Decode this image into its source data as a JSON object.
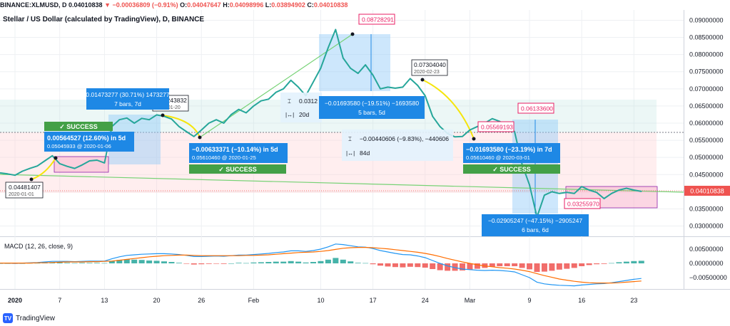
{
  "header": {
    "symbol": "BINANCE:XLMUSD, D",
    "last": "0.04010838",
    "change": "−0.00036809 (−0.91%)",
    "o_label": "O:",
    "o": "0.04047647",
    "h_label": "H:",
    "h": "0.04098996",
    "l_label": "L:",
    "l": "0.03894902",
    "c_label": "C:",
    "c": "0.04010838"
  },
  "chart_title": "Stellar / US Dollar (calculated by TradingView), D, BINANCE",
  "logo_text": "TradingView",
  "colors": {
    "price_line": "#26a69a",
    "success_green": "#43a047",
    "info_blue": "#2196f3",
    "callout_red": "#e91e63",
    "trend_green": "#76d275",
    "arc_yellow": "#f5e50c",
    "macd_line": "#2196f3",
    "signal_line": "#ff6d00",
    "hist_pos": "#26a69a",
    "hist_neg": "#ef5350",
    "current_price_bg": "#ef5350"
  },
  "price_axis_labels": [
    "0.09000000",
    "0.08500000",
    "0.08000000",
    "0.07500000",
    "0.07000000",
    "0.06500000",
    "0.06000000",
    "0.05500000",
    "0.05000000",
    "0.04500000",
    "0.04000000",
    "0.03500000",
    "0.03000000"
  ],
  "current_price_label": "0.04010838",
  "macd_axis_labels": [
    "0.00500000",
    "0.00000000",
    "−0.00500000"
  ],
  "x_axis_labels": [
    "2020",
    "7",
    "13",
    "20",
    "26",
    "Feb",
    "10",
    "17",
    "24",
    "Mar",
    "9",
    "16",
    "23"
  ],
  "macd_title": "MACD (12, 26, close, 9)",
  "annotations": {
    "low_jan01": {
      "value": "0.04481407",
      "date": "2020-01-01"
    },
    "high_jan20": {
      "value": "0.06243832",
      "date": "2020-01-20"
    },
    "top_callout": "0.08728291",
    "mid_callout": {
      "value": "0.07304040",
      "date": "2020-02-23"
    },
    "callout_a": "0.05569193",
    "callout_b": "0.06133600",
    "callout_c": "0.03255970",
    "success_1": {
      "badge": "✓ SUCCESS",
      "line1": "0.00564527 (12.60%) in 5d",
      "line2": "0.05045933 @ 2020-01-06"
    },
    "success_2": {
      "badge": "✓ SUCCESS",
      "line1": "−0.00633371 (−10.14%) in 5d",
      "line2": "0.05610460 @ 2020-01-25"
    },
    "success_3": {
      "badge": "✓ SUCCESS",
      "line1": "−0.01693580 (−23.19%) in 7d",
      "line2": "0.05610460 @ 2020-03-01"
    },
    "box_jan": {
      "line1": "0.01473277 (30.71%) 1473277",
      "line2": "7 bars, 7d"
    },
    "box_feb_a": {
      "line1": "0.0312",
      "line2": "20d"
    },
    "box_feb_b": {
      "line1": "−0.01693580 (−19.51%) −1693580",
      "line2": "5 bars, 5d"
    },
    "box_feb_c": {
      "line1": "−0.00440606 (−9.83%), −440606",
      "line2": "84d"
    },
    "box_mar": {
      "line1": "−0.02905247 (−47.15%) −2905247",
      "line2": "6 bars, 6d"
    }
  },
  "chart_data": {
    "type": "line",
    "title": "Stellar / US Dollar (calculated by TradingView), D, BINANCE",
    "x": [
      "2019-12-30",
      "2019-12-31",
      "2020-01-01",
      "2020-01-02",
      "2020-01-03",
      "2020-01-04",
      "2020-01-05",
      "2020-01-06",
      "2020-01-07",
      "2020-01-08",
      "2020-01-09",
      "2020-01-10",
      "2020-01-11",
      "2020-01-12",
      "2020-01-13",
      "2020-01-14",
      "2020-01-15",
      "2020-01-16",
      "2020-01-17",
      "2020-01-18",
      "2020-01-19",
      "2020-01-20",
      "2020-01-21",
      "2020-01-22",
      "2020-01-23",
      "2020-01-24",
      "2020-01-25",
      "2020-01-26",
      "2020-01-27",
      "2020-01-28",
      "2020-01-29",
      "2020-01-30",
      "2020-01-31",
      "2020-02-01",
      "2020-02-02",
      "2020-02-03",
      "2020-02-04",
      "2020-02-05",
      "2020-02-06",
      "2020-02-07",
      "2020-02-08",
      "2020-02-09",
      "2020-02-10",
      "2020-02-11",
      "2020-02-12",
      "2020-02-13",
      "2020-02-14",
      "2020-02-15",
      "2020-02-16",
      "2020-02-17",
      "2020-02-18",
      "2020-02-19",
      "2020-02-20",
      "2020-02-21",
      "2020-02-22",
      "2020-02-23",
      "2020-02-24",
      "2020-02-25",
      "2020-02-26",
      "2020-02-27",
      "2020-02-28",
      "2020-02-29",
      "2020-03-01",
      "2020-03-02",
      "2020-03-03",
      "2020-03-04",
      "2020-03-05",
      "2020-03-06",
      "2020-03-07",
      "2020-03-08",
      "2020-03-09",
      "2020-03-10",
      "2020-03-11",
      "2020-03-12",
      "2020-03-13",
      "2020-03-14",
      "2020-03-15",
      "2020-03-16",
      "2020-03-17",
      "2020-03-18",
      "2020-03-19",
      "2020-03-20",
      "2020-03-21",
      "2020-03-22",
      "2020-03-23",
      "2020-03-24",
      "2020-03-25"
    ],
    "series": [
      {
        "values": [
          0.0455,
          0.0452,
          0.0448,
          0.046,
          0.0468,
          0.0475,
          0.049,
          0.0505,
          0.0482,
          0.0474,
          0.0468,
          0.0478,
          0.049,
          0.0492,
          0.0484,
          0.059,
          0.061,
          0.0615,
          0.06,
          0.0614,
          0.061,
          0.0624,
          0.062,
          0.0612,
          0.059,
          0.0575,
          0.0561,
          0.058,
          0.06,
          0.061,
          0.06,
          0.0625,
          0.064,
          0.063,
          0.065,
          0.0665,
          0.067,
          0.069,
          0.07,
          0.0725,
          0.0705,
          0.068,
          0.072,
          0.076,
          0.082,
          0.0873,
          0.079,
          0.076,
          0.0745,
          0.077,
          0.074,
          0.07,
          0.0705,
          0.0702,
          0.0705,
          0.073,
          0.071,
          0.068,
          0.062,
          0.059,
          0.057,
          0.056,
          0.0561,
          0.058,
          0.059,
          0.06,
          0.0613,
          0.0605,
          0.059,
          0.0575,
          0.048,
          0.042,
          0.0326,
          0.039,
          0.04,
          0.0395,
          0.0398,
          0.0395,
          0.0415,
          0.0405,
          0.0398,
          0.038,
          0.0395,
          0.0405,
          0.041,
          0.0405,
          0.0401
        ]
      }
    ],
    "macd": {
      "title": "MACD (12, 26, close, 9)",
      "macd_values": [
        0.0001,
        0.0001,
        0.0,
        0.0001,
        0.0002,
        0.0003,
        0.0005,
        0.0007,
        0.0007,
        0.0007,
        0.0006,
        0.0007,
        0.0008,
        0.0008,
        0.0008,
        0.0016,
        0.0023,
        0.0028,
        0.003,
        0.0032,
        0.0033,
        0.0034,
        0.0034,
        0.0033,
        0.0031,
        0.0028,
        0.0024,
        0.0024,
        0.0025,
        0.0026,
        0.0025,
        0.0027,
        0.0029,
        0.0029,
        0.0031,
        0.0033,
        0.0035,
        0.0038,
        0.004,
        0.0044,
        0.0044,
        0.0042,
        0.0045,
        0.005,
        0.0058,
        0.0068,
        0.0066,
        0.0062,
        0.0058,
        0.0057,
        0.0052,
        0.0045,
        0.004,
        0.0035,
        0.0031,
        0.003,
        0.0026,
        0.002,
        0.001,
        0.0,
        -0.0009,
        -0.0015,
        -0.002,
        -0.0022,
        -0.0024,
        -0.0025,
        -0.0024,
        -0.0025,
        -0.0027,
        -0.003,
        -0.004,
        -0.005,
        -0.0066,
        -0.0072,
        -0.0075,
        -0.0077,
        -0.0078,
        -0.0079,
        -0.0076,
        -0.0074,
        -0.0072,
        -0.0071,
        -0.0068,
        -0.0064,
        -0.006,
        -0.0056,
        -0.0053
      ],
      "signal_values": [
        0.0001,
        0.0001,
        0.0001,
        0.0001,
        0.0001,
        0.0002,
        0.0002,
        0.0003,
        0.0004,
        0.0005,
        0.0005,
        0.0005,
        0.0006,
        0.0006,
        0.0007,
        0.0008,
        0.0011,
        0.0014,
        0.0017,
        0.002,
        0.0023,
        0.0025,
        0.0027,
        0.0028,
        0.0029,
        0.0029,
        0.0028,
        0.0027,
        0.0027,
        0.0027,
        0.0027,
        0.0027,
        0.0027,
        0.0028,
        0.0028,
        0.0029,
        0.003,
        0.0032,
        0.0034,
        0.0036,
        0.0038,
        0.0039,
        0.004,
        0.0042,
        0.0045,
        0.0049,
        0.0053,
        0.0055,
        0.0056,
        0.0056,
        0.0055,
        0.0053,
        0.0051,
        0.0048,
        0.0045,
        0.0042,
        0.0039,
        0.0035,
        0.003,
        0.0024,
        0.0017,
        0.0011,
        0.0005,
        0.0,
        -0.0005,
        -0.0009,
        -0.0012,
        -0.0015,
        -0.0017,
        -0.002,
        -0.0024,
        -0.0029,
        -0.0036,
        -0.0043,
        -0.0049,
        -0.0055,
        -0.0059,
        -0.0063,
        -0.0066,
        -0.0068,
        -0.0069,
        -0.0069,
        -0.0069,
        -0.0068,
        -0.0066,
        -0.0064,
        -0.0062
      ]
    },
    "xlabel": "",
    "ylabel": "",
    "ylim": [
      0.027,
      0.093
    ],
    "macd_ylim": [
      -0.0085,
      0.0075
    ],
    "grid": true
  }
}
